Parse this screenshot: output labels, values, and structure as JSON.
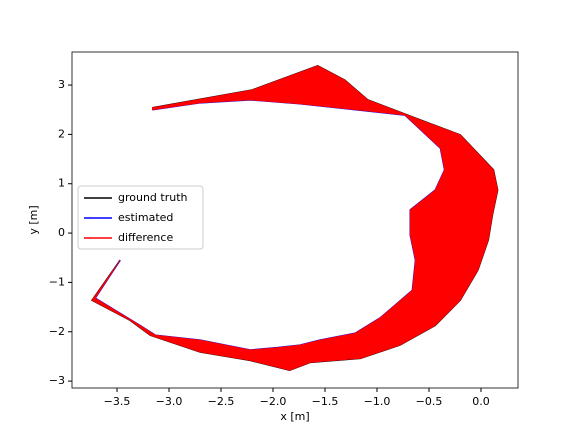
{
  "chart_data": {
    "type": "trajectory",
    "xlabel": "x [m]",
    "ylabel": "y [m]",
    "xlim": [
      -3.933,
      0.356
    ],
    "ylim": [
      -3.14,
      3.67
    ],
    "xticks": [
      {
        "value": -3.5,
        "label": "−3.5"
      },
      {
        "value": -3.0,
        "label": "−3.0"
      },
      {
        "value": -2.5,
        "label": "−2.5"
      },
      {
        "value": -2.0,
        "label": "−2.0"
      },
      {
        "value": -1.5,
        "label": "−1.5"
      },
      {
        "value": -1.0,
        "label": "−1.0"
      },
      {
        "value": -0.5,
        "label": "−0.5"
      },
      {
        "value": 0,
        "label": "0.0"
      }
    ],
    "yticks": [
      {
        "value": -3,
        "label": "−3"
      },
      {
        "value": -2,
        "label": "−2"
      },
      {
        "value": -1,
        "label": "−1"
      },
      0,
      1,
      2,
      3
    ],
    "legend": "center left",
    "series": [
      {
        "name": "ground truth",
        "color": "#000000",
        "x": [
          -3.16,
          -2.2,
          -1.57,
          -1.31,
          -1.09,
          -0.63,
          -0.2,
          0.12,
          0.16,
          0.11,
          0.07,
          -0.03,
          -0.2,
          -0.44,
          -0.78,
          -1.16,
          -1.64,
          -1.84,
          -2.22,
          -2.7,
          -3.18,
          -3.38,
          -3.74,
          -3.47
        ],
        "values": [
          2.54,
          2.9,
          3.39,
          3.1,
          2.7,
          2.33,
          1.99,
          1.28,
          0.87,
          0.37,
          -0.14,
          -0.75,
          -1.36,
          -1.87,
          -2.27,
          -2.54,
          -2.62,
          -2.78,
          -2.58,
          -2.41,
          -2.07,
          -1.76,
          -1.36,
          -0.55
        ]
      },
      {
        "name": "estimated",
        "color": "#0000ff",
        "x": [
          -3.16,
          -2.7,
          -2.22,
          -1.74,
          -1.16,
          -0.73,
          -0.39,
          -0.35,
          -0.44,
          -0.68,
          -0.68,
          -0.63,
          -0.66,
          -0.97,
          -1.21,
          -1.55,
          -1.74,
          -1.95,
          -2.22,
          -2.7,
          -3.13,
          -3.28,
          -3.71,
          -3.47
        ],
        "values": [
          2.5,
          2.64,
          2.7,
          2.62,
          2.49,
          2.39,
          1.72,
          1.28,
          0.87,
          0.47,
          -0.04,
          -0.55,
          -1.16,
          -1.72,
          -2.03,
          -2.17,
          -2.27,
          -2.32,
          -2.37,
          -2.17,
          -2.07,
          -1.87,
          -1.32,
          -0.55
        ]
      },
      {
        "name": "difference",
        "color": "#ff0000"
      }
    ]
  }
}
